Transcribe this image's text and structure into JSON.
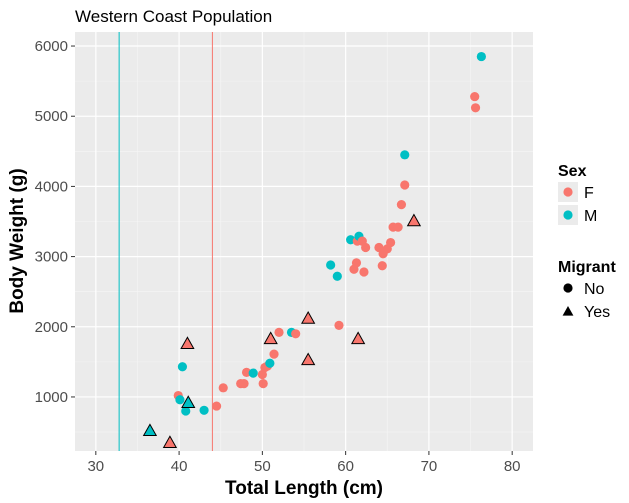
{
  "chart_data": {
    "type": "scatter",
    "title": "Western Coast Population",
    "xlabel": "Total Length (cm)",
    "ylabel": "Body Weight (g)",
    "xlim": [
      27.5,
      82.5
    ],
    "ylim": [
      230,
      6200
    ],
    "x_ticks": [
      30,
      40,
      50,
      60,
      70,
      80
    ],
    "y_ticks": [
      1000,
      2000,
      3000,
      4000,
      5000,
      6000
    ],
    "grid": true,
    "background": "#ebebeb",
    "colors": {
      "F": "#f8766d",
      "M": "#00bfc4"
    },
    "vlines": [
      {
        "x": 32.8,
        "group": "M"
      },
      {
        "x": 44.0,
        "group": "F"
      }
    ],
    "points": [
      {
        "x": 36.5,
        "y": 510,
        "sex": "M",
        "migrant": "Yes"
      },
      {
        "x": 38.9,
        "y": 340,
        "sex": "F",
        "migrant": "Yes"
      },
      {
        "x": 39.9,
        "y": 1020,
        "sex": "F",
        "migrant": "No"
      },
      {
        "x": 40.1,
        "y": 960,
        "sex": "M",
        "migrant": "No"
      },
      {
        "x": 40.4,
        "y": 1430,
        "sex": "M",
        "migrant": "No"
      },
      {
        "x": 40.8,
        "y": 800,
        "sex": "M",
        "migrant": "No"
      },
      {
        "x": 41.1,
        "y": 910,
        "sex": "M",
        "migrant": "Yes"
      },
      {
        "x": 41.0,
        "y": 1750,
        "sex": "F",
        "migrant": "Yes"
      },
      {
        "x": 43.0,
        "y": 810,
        "sex": "M",
        "migrant": "No"
      },
      {
        "x": 44.5,
        "y": 870,
        "sex": "F",
        "migrant": "No"
      },
      {
        "x": 45.3,
        "y": 1130,
        "sex": "F",
        "migrant": "No"
      },
      {
        "x": 47.4,
        "y": 1190,
        "sex": "F",
        "migrant": "No"
      },
      {
        "x": 47.8,
        "y": 1190,
        "sex": "F",
        "migrant": "No"
      },
      {
        "x": 48.1,
        "y": 1350,
        "sex": "F",
        "migrant": "No"
      },
      {
        "x": 48.9,
        "y": 1340,
        "sex": "M",
        "migrant": "No"
      },
      {
        "x": 50.0,
        "y": 1320,
        "sex": "F",
        "migrant": "No"
      },
      {
        "x": 50.1,
        "y": 1190,
        "sex": "F",
        "migrant": "No"
      },
      {
        "x": 50.3,
        "y": 1420,
        "sex": "F",
        "migrant": "No"
      },
      {
        "x": 50.6,
        "y": 1440,
        "sex": "F",
        "migrant": "No"
      },
      {
        "x": 50.9,
        "y": 1480,
        "sex": "M",
        "migrant": "No"
      },
      {
        "x": 51.0,
        "y": 1820,
        "sex": "F",
        "migrant": "Yes"
      },
      {
        "x": 51.4,
        "y": 1610,
        "sex": "F",
        "migrant": "No"
      },
      {
        "x": 52.0,
        "y": 1920,
        "sex": "F",
        "migrant": "No"
      },
      {
        "x": 53.5,
        "y": 1920,
        "sex": "M",
        "migrant": "No"
      },
      {
        "x": 54.0,
        "y": 1900,
        "sex": "F",
        "migrant": "No"
      },
      {
        "x": 55.5,
        "y": 2110,
        "sex": "F",
        "migrant": "Yes"
      },
      {
        "x": 55.5,
        "y": 1520,
        "sex": "F",
        "migrant": "Yes"
      },
      {
        "x": 58.2,
        "y": 2880,
        "sex": "M",
        "migrant": "No"
      },
      {
        "x": 59.0,
        "y": 2720,
        "sex": "M",
        "migrant": "No"
      },
      {
        "x": 59.2,
        "y": 2020,
        "sex": "F",
        "migrant": "No"
      },
      {
        "x": 60.6,
        "y": 3240,
        "sex": "M",
        "migrant": "No"
      },
      {
        "x": 61.0,
        "y": 2820,
        "sex": "F",
        "migrant": "No"
      },
      {
        "x": 61.3,
        "y": 2910,
        "sex": "F",
        "migrant": "No"
      },
      {
        "x": 61.4,
        "y": 3220,
        "sex": "F",
        "migrant": "No"
      },
      {
        "x": 61.6,
        "y": 3290,
        "sex": "M",
        "migrant": "No"
      },
      {
        "x": 61.5,
        "y": 1820,
        "sex": "F",
        "migrant": "Yes"
      },
      {
        "x": 62.0,
        "y": 3220,
        "sex": "F",
        "migrant": "No"
      },
      {
        "x": 62.2,
        "y": 2780,
        "sex": "F",
        "migrant": "No"
      },
      {
        "x": 62.4,
        "y": 3130,
        "sex": "F",
        "migrant": "No"
      },
      {
        "x": 64.0,
        "y": 3130,
        "sex": "F",
        "migrant": "No"
      },
      {
        "x": 64.4,
        "y": 2870,
        "sex": "F",
        "migrant": "No"
      },
      {
        "x": 64.5,
        "y": 3040,
        "sex": "F",
        "migrant": "No"
      },
      {
        "x": 65.0,
        "y": 3110,
        "sex": "F",
        "migrant": "No"
      },
      {
        "x": 65.4,
        "y": 3200,
        "sex": "F",
        "migrant": "No"
      },
      {
        "x": 65.7,
        "y": 3420,
        "sex": "F",
        "migrant": "No"
      },
      {
        "x": 66.3,
        "y": 3420,
        "sex": "F",
        "migrant": "No"
      },
      {
        "x": 66.7,
        "y": 3740,
        "sex": "F",
        "migrant": "No"
      },
      {
        "x": 67.1,
        "y": 4020,
        "sex": "F",
        "migrant": "No"
      },
      {
        "x": 67.1,
        "y": 4450,
        "sex": "M",
        "migrant": "No"
      },
      {
        "x": 68.2,
        "y": 3500,
        "sex": "F",
        "migrant": "Yes"
      },
      {
        "x": 75.5,
        "y": 5280,
        "sex": "F",
        "migrant": "No"
      },
      {
        "x": 75.6,
        "y": 5120,
        "sex": "F",
        "migrant": "No"
      },
      {
        "x": 76.3,
        "y": 5850,
        "sex": "M",
        "migrant": "No"
      }
    ]
  },
  "legend": {
    "sex_title": "Sex",
    "sex_items": [
      {
        "label": "F",
        "color": "#f8766d"
      },
      {
        "label": "M",
        "color": "#00bfc4"
      }
    ],
    "migrant_title": "Migrant",
    "migrant_items": [
      {
        "label": "No",
        "shape": "circle"
      },
      {
        "label": "Yes",
        "shape": "triangle"
      }
    ]
  }
}
